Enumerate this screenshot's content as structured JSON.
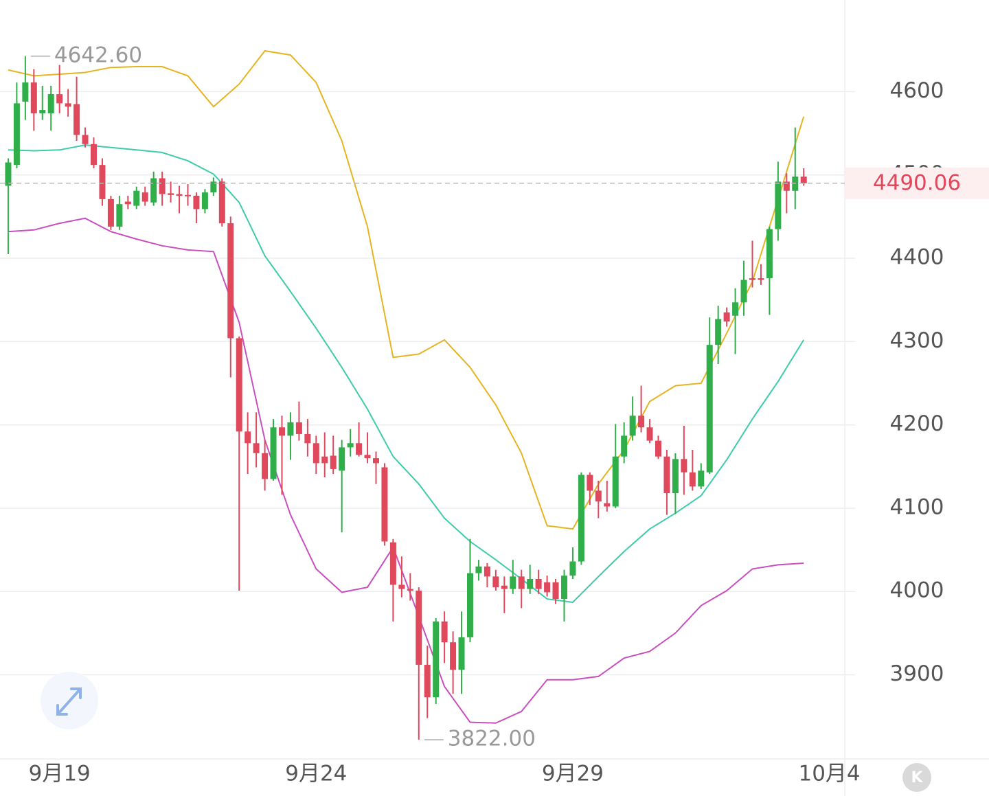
{
  "chart_data": {
    "type": "candlestick",
    "up_color": "#2fae4a",
    "down_color": "#e0485c",
    "open": [
      4487,
      4512,
      4588,
      4611,
      4574,
      4574,
      4597,
      4586,
      4585,
      4548,
      4537,
      4512,
      4471,
      4438,
      4468,
      4463,
      4479,
      4467,
      4496,
      4478,
      4477,
      4476,
      4475,
      4459,
      4479,
      4492,
      4442,
      4304,
      4192,
      4178,
      4166,
      4135,
      4197,
      4187,
      4203,
      4189,
      4178,
      4162,
      4163,
      4145,
      4173,
      4178,
      4164,
      4160,
      4149,
      4059,
      4008,
      4003,
      4001,
      3912,
      3873,
      3964,
      3939,
      3906,
      3945,
      4022,
      4030,
      4018,
      4007,
      4003,
      4018,
      4003,
      4015,
      4011,
      4011,
      3991,
      4019,
      4036,
      4140,
      4121,
      4106,
      4102,
      4162,
      4187,
      4211,
      4197,
      4181,
      4162,
      4118,
      4159,
      4143,
      4126,
      4143,
      4296,
      4335,
      4331,
      4347,
      4376,
      4376,
      4376,
      4435,
      4492,
      4481,
      4498
    ],
    "high": [
      4520,
      4611,
      4642.6,
      4627,
      4607,
      4607,
      4632,
      4603,
      4618,
      4557,
      4545,
      4520,
      4475,
      4475,
      4475,
      4486,
      4486,
      4504,
      4504,
      4492,
      4487,
      4489,
      4479,
      4483,
      4497,
      4496,
      4450,
      4306,
      4215,
      4215,
      4182,
      4207,
      4211,
      4215,
      4228,
      4207,
      4187,
      4191,
      4187,
      4182,
      4195,
      4203,
      4191,
      4168,
      4154,
      4063,
      4042,
      4022,
      4005,
      3935,
      3968,
      3976,
      3952,
      3976,
      4063,
      4038,
      4034,
      4026,
      4018,
      4038,
      4026,
      4032,
      4026,
      4019,
      4015,
      4026,
      4053,
      4143,
      4143,
      4133,
      4133,
      4201,
      4203,
      4234,
      4247,
      4207,
      4187,
      4170,
      4166,
      4199,
      4170,
      4154,
      4329,
      4343,
      4341,
      4364,
      4397,
      4421,
      4393,
      4438,
      4516,
      4502,
      4557,
      4508
    ],
    "low": [
      4405,
      4508,
      4566,
      4553,
      4566,
      4553,
      4574,
      4570,
      4541,
      4533,
      4508,
      4463,
      4434,
      4434,
      4459,
      4459,
      4463,
      4463,
      4463,
      4467,
      4454,
      4463,
      4442,
      4454,
      4475,
      4438,
      4257,
      4001,
      4141,
      4149,
      4121,
      4133,
      4116,
      4158,
      4181,
      4162,
      4141,
      4137,
      4141,
      4071,
      4162,
      4162,
      4154,
      4129,
      4055,
      3964,
      3993,
      3989,
      3822,
      3848,
      3865,
      3914,
      3877,
      3877,
      3939,
      4013,
      4005,
      4001,
      3974,
      3997,
      3980,
      3997,
      3997,
      3994,
      3985,
      3964,
      4015,
      4032,
      4104,
      4088,
      4096,
      4100,
      4154,
      4181,
      4191,
      4178,
      4159,
      4092,
      4093,
      4116,
      4121,
      4123,
      4141,
      4273,
      4318,
      4285,
      4331,
      4365,
      4368,
      4332,
      4421,
      4454,
      4459,
      4487
    ],
    "close": [
      4515,
      4586,
      4611,
      4574,
      4578,
      4597,
      4586,
      4582,
      4548,
      4537,
      4512,
      4471,
      4438,
      4465,
      4465,
      4481,
      4468,
      4496,
      4477,
      4476,
      4475,
      4475,
      4459,
      4479,
      4492,
      4442,
      4304,
      4192,
      4178,
      4166,
      4135,
      4197,
      4187,
      4203,
      4189,
      4178,
      4154,
      4154,
      4147,
      4173,
      4178,
      4164,
      4160,
      4154,
      4060,
      4008,
      4003,
      4001,
      3912,
      3873,
      3964,
      3939,
      3906,
      3945,
      4022,
      4030,
      4018,
      4005,
      4003,
      4018,
      4003,
      4015,
      4003,
      3999,
      3991,
      4019,
      4036,
      4140,
      4121,
      4108,
      4102,
      4162,
      4187,
      4211,
      4197,
      4181,
      4162,
      4118,
      4159,
      4143,
      4126,
      4145,
      4296,
      4327,
      4324,
      4347,
      4374,
      4374,
      4374,
      4435,
      4492,
      4481,
      4498,
      4490.06
    ],
    "series_x": [
      0,
      3,
      6,
      9,
      12,
      15,
      18,
      21,
      24,
      27,
      30,
      33,
      36,
      39,
      42,
      45,
      48,
      51,
      54,
      57,
      60,
      63,
      66,
      69,
      72,
      75,
      78,
      81,
      84,
      87,
      90,
      93
    ],
    "series": [
      {
        "color": "#e6b422",
        "values": [
          4626,
          4619,
          4621,
          4623,
          4629,
          4630,
          4630,
          4619,
          4582,
          4609,
          4649,
          4644,
          4611,
          4541,
          4438,
          4281,
          4285,
          4302,
          4269,
          4224,
          4166,
          4079,
          4075,
          4129,
          4170,
          4228,
          4247,
          4250,
          4310,
          4372,
          4471,
          4570
        ]
      },
      {
        "color": "#3ecba9",
        "values": [
          4530,
          4529,
          4530,
          4536,
          4533,
          4530,
          4527,
          4517,
          4501,
          4467,
          4403,
          4360,
          4316,
          4269,
          4219,
          4162,
          4129,
          4088,
          4060,
          4038,
          4015,
          3991,
          3987,
          4018,
          4048,
          4075,
          4094,
          4115,
          4158,
          4207,
          4252,
          4302
        ]
      },
      {
        "color": "#c94fbf",
        "values": [
          4432,
          4434,
          4442,
          4448,
          4432,
          4423,
          4415,
          4410,
          4408,
          4323,
          4182,
          4092,
          4027,
          3999,
          4005,
          4053,
          3970,
          3886,
          3843,
          3842,
          3856,
          3894,
          3894,
          3898,
          3920,
          3928,
          3950,
          3983,
          4001,
          4027,
          4032,
          4034
        ]
      }
    ],
    "annotations": [
      {
        "index": 2,
        "value": 4642.6,
        "label": "4642.60"
      },
      {
        "index": 48,
        "value": 3822,
        "label": "3822.00"
      }
    ],
    "last_price": 4490.06,
    "last_price_color": "#e0485c",
    "xlim": [
      -0.96,
      97.8
    ],
    "xticks": [
      {
        "value": 6,
        "label": "9月19"
      },
      {
        "value": 36,
        "label": "9月24"
      },
      {
        "value": 66,
        "label": "9月29"
      },
      {
        "value": 96,
        "label": "10月4"
      }
    ],
    "ylim": [
      3799,
      4710
    ],
    "yticks": [
      3900,
      4000,
      4100,
      4200,
      4300,
      4400,
      4500,
      4600
    ],
    "grid": true
  }
}
